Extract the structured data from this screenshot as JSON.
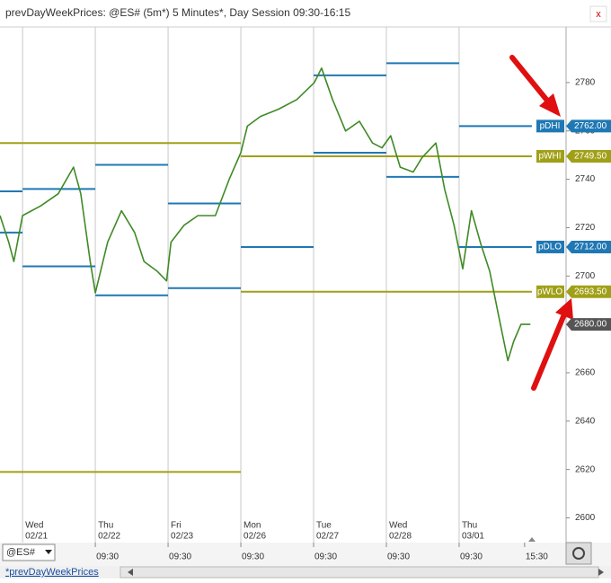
{
  "window": {
    "title": "prevDayWeekPrices: @ES# (5m*) 5 Minutes*, Day Session 09:30-16:15",
    "symbol": "@ES#",
    "tab": "*prevDayWeekPrices"
  },
  "chart_data": {
    "type": "line",
    "color": "#3f8a26",
    "x": [
      -0.31,
      -0.19,
      -0.12,
      0,
      0.25,
      0.49,
      0.7,
      0.8,
      0.93,
      1,
      1.17,
      1.36,
      1.54,
      1.67,
      1.85,
      1.98,
      2.04,
      2.22,
      2.41,
      2.65,
      2.84,
      3,
      3.09,
      3.27,
      3.52,
      3.77,
      4.01,
      4.11,
      4.26,
      4.44,
      4.63,
      4.81,
      4.94,
      5.06,
      5.19,
      5.37,
      5.49,
      5.68,
      5.8,
      5.93,
      6.05,
      6.17,
      6.3,
      6.42,
      6.54,
      6.67,
      6.75,
      6.85,
      6.98
    ],
    "values": [
      2725,
      2714,
      2706,
      2725,
      2729,
      2734,
      2745,
      2734,
      2706,
      2693,
      2714,
      2727,
      2718,
      2706,
      2702,
      2698,
      2714,
      2721,
      2725,
      2725,
      2740,
      2751,
      2762,
      2766,
      2769,
      2773,
      2780,
      2786,
      2773,
      2760,
      2764,
      2755,
      2753,
      2758,
      2745,
      2743,
      2749,
      2755,
      2736,
      2721,
      2703,
      2727,
      2713,
      2702,
      2684,
      2665,
      2673,
      2680,
      2680
    ],
    "xlim": [
      -0.31,
      7.47
    ],
    "ylim": [
      2592,
      2803
    ],
    "yticks": [
      2600,
      2620,
      2640,
      2660,
      2680,
      2700,
      2720,
      2740,
      2760,
      2780
    ],
    "categories": [
      null,
      "Wed",
      "Thu",
      "Fri",
      "Mon",
      "Tue",
      "Wed",
      "Thu"
    ],
    "dates": [
      null,
      "02/21",
      "02/22",
      "02/23",
      "02/26",
      "02/27",
      "02/28",
      "03/01"
    ],
    "time_ticks": [
      {
        "value": 1,
        "label": "09:30"
      },
      {
        "value": 2,
        "label": "09:30"
      },
      {
        "value": 3,
        "label": "09:30"
      },
      {
        "value": 4,
        "label": "09:30"
      },
      {
        "value": 5,
        "label": "09:30"
      },
      {
        "value": 6,
        "label": "09:30"
      },
      {
        "value": 6.9,
        "label": "15:30"
      }
    ],
    "levels": [
      {
        "name": "pDHI",
        "color": "#1f78b4",
        "values": [
          2735,
          2736,
          2746,
          2730,
          null,
          2783,
          2788,
          2762
        ],
        "value_label": "2762.00"
      },
      {
        "name": "pWHI",
        "color": "#a0a018",
        "values": [
          2755,
          2755,
          2755,
          2755,
          2749.5,
          2749.5,
          2749.5,
          2749.5
        ],
        "value_label": "2749.50"
      },
      {
        "name": "pDLO",
        "color": "#1f78b4",
        "values": [
          2718,
          2704,
          2692,
          2695,
          2712,
          2751,
          2741,
          2712
        ],
        "value_label": "2712.00"
      },
      {
        "name": "pWLO",
        "color": "#a0a018",
        "values": [
          2619,
          2619,
          2619,
          2619,
          2693.5,
          2693.5,
          2693.5,
          2693.5
        ],
        "value_label": "2693.50"
      }
    ],
    "last_value": 2680,
    "last_label": "2680.00"
  }
}
